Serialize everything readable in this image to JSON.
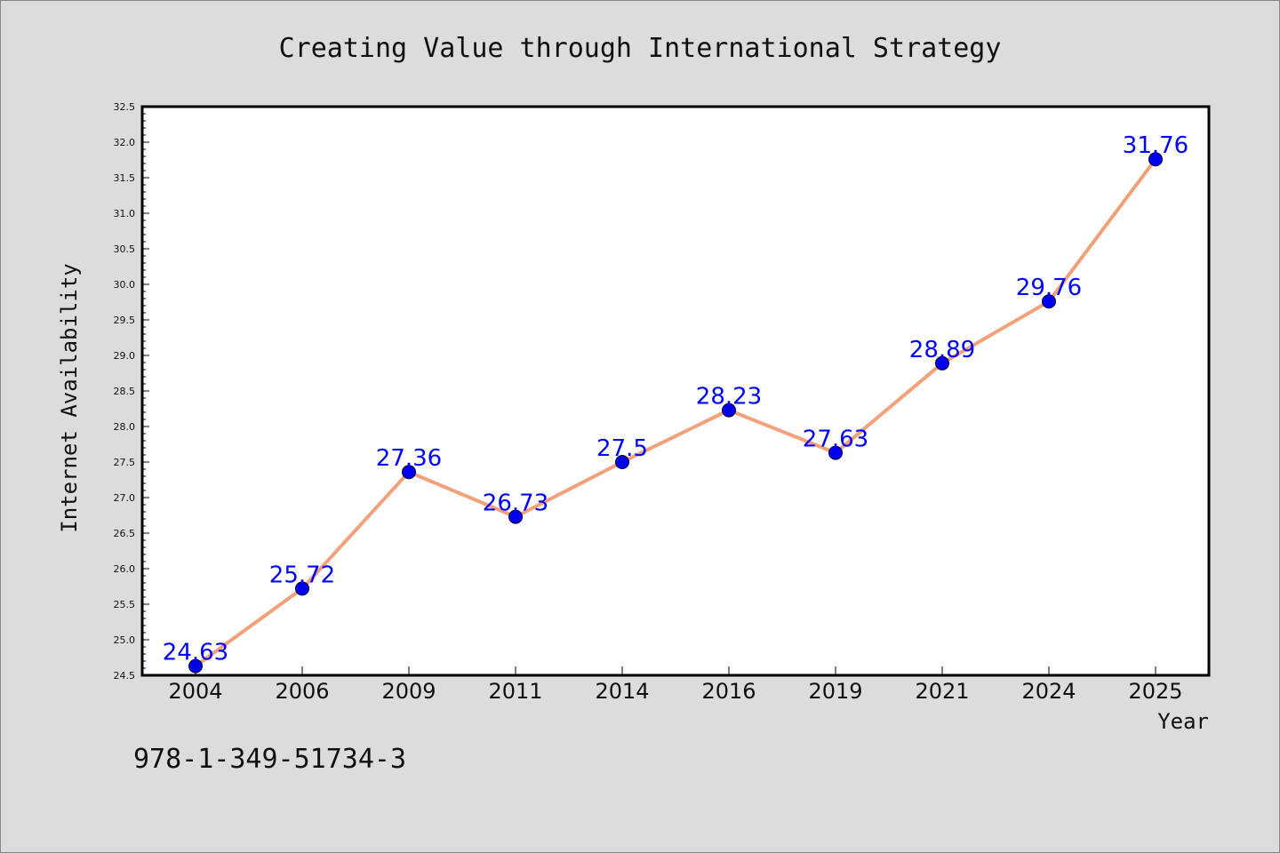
{
  "chart_data": {
    "type": "line",
    "title": "Creating Value through International Strategy",
    "xlabel": "Year",
    "ylabel": "Internet Availability",
    "categories": [
      "2004",
      "2006",
      "2009",
      "2011",
      "2014",
      "2016",
      "2019",
      "2021",
      "2024",
      "2025"
    ],
    "series": [
      {
        "values": [
          24.63,
          25.72,
          27.36,
          26.73,
          27.5,
          28.23,
          27.63,
          28.89,
          29.76,
          31.76
        ],
        "data_labels": [
          "24.63",
          "25.72",
          "27.36",
          "26.73",
          "27.5",
          "28.23",
          "27.63",
          "28.89",
          "29.76",
          "31.76"
        ],
        "line_color": "#f4a07a",
        "marker_color": "#0000ee"
      }
    ],
    "ylim": [
      24.5,
      32.5
    ],
    "yticks": [
      "24.5",
      "25.0",
      "25.5",
      "26.0",
      "26.5",
      "27.0",
      "27.5",
      "28.0",
      "28.5",
      "29.0",
      "29.5",
      "30.0",
      "30.5",
      "31.0",
      "31.5",
      "32.0",
      "32.5"
    ],
    "grid": false,
    "legend": "none"
  },
  "footer": {
    "isbn": "978-1-349-51734-3"
  },
  "colors": {
    "background": "#dcdcdc",
    "plot_background": "#ffffff",
    "data_label": "#0000ff"
  }
}
